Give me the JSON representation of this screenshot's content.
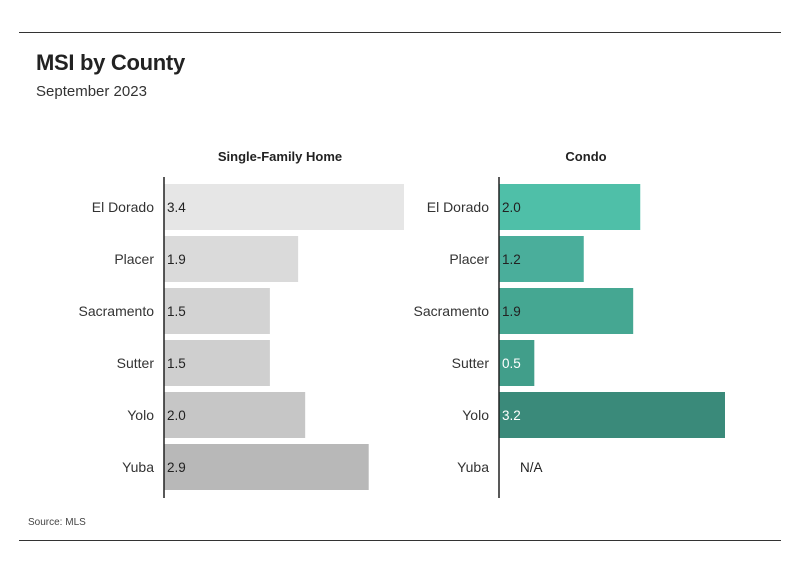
{
  "title": "MSI by County",
  "subtitle": "September 2023",
  "source": "Source: MLS",
  "chart_data": [
    {
      "type": "bar",
      "orientation": "horizontal",
      "title": "Single-Family Home",
      "categories": [
        "El Dorado",
        "Placer",
        "Sacramento",
        "Sutter",
        "Yolo",
        "Yuba"
      ],
      "values": [
        3.4,
        1.9,
        1.5,
        1.5,
        2.0,
        2.9
      ],
      "value_labels": [
        "3.4",
        "1.9",
        "1.5",
        "1.5",
        "2.0",
        "2.9"
      ],
      "xlim": [
        0,
        3.4
      ],
      "grid": false,
      "colors": [
        "#e6e6e6",
        "#dadada",
        "#d3d3d3",
        "#cfcfcf",
        "#c6c6c6",
        "#b8b8b8"
      ],
      "label_colors": [
        "#222222",
        "#222222",
        "#222222",
        "#222222",
        "#222222",
        "#222222"
      ]
    },
    {
      "type": "bar",
      "orientation": "horizontal",
      "title": "Condo",
      "categories": [
        "El Dorado",
        "Placer",
        "Sacramento",
        "Sutter",
        "Yolo",
        "Yuba"
      ],
      "values": [
        2.0,
        1.2,
        1.9,
        0.5,
        3.2,
        null
      ],
      "value_labels": [
        "2.0",
        "1.2",
        "1.9",
        "0.5",
        "3.2",
        "N/A"
      ],
      "xlim": [
        0,
        3.2
      ],
      "grid": false,
      "colors": [
        "#4fbfa8",
        "#4aae9b",
        "#45a792",
        "#419e8a",
        "#3a8a7a",
        "#3a8a7a"
      ],
      "label_colors": [
        "#222222",
        "#222222",
        "#222222",
        "#ffffff",
        "#ffffff",
        "#222222"
      ]
    }
  ]
}
